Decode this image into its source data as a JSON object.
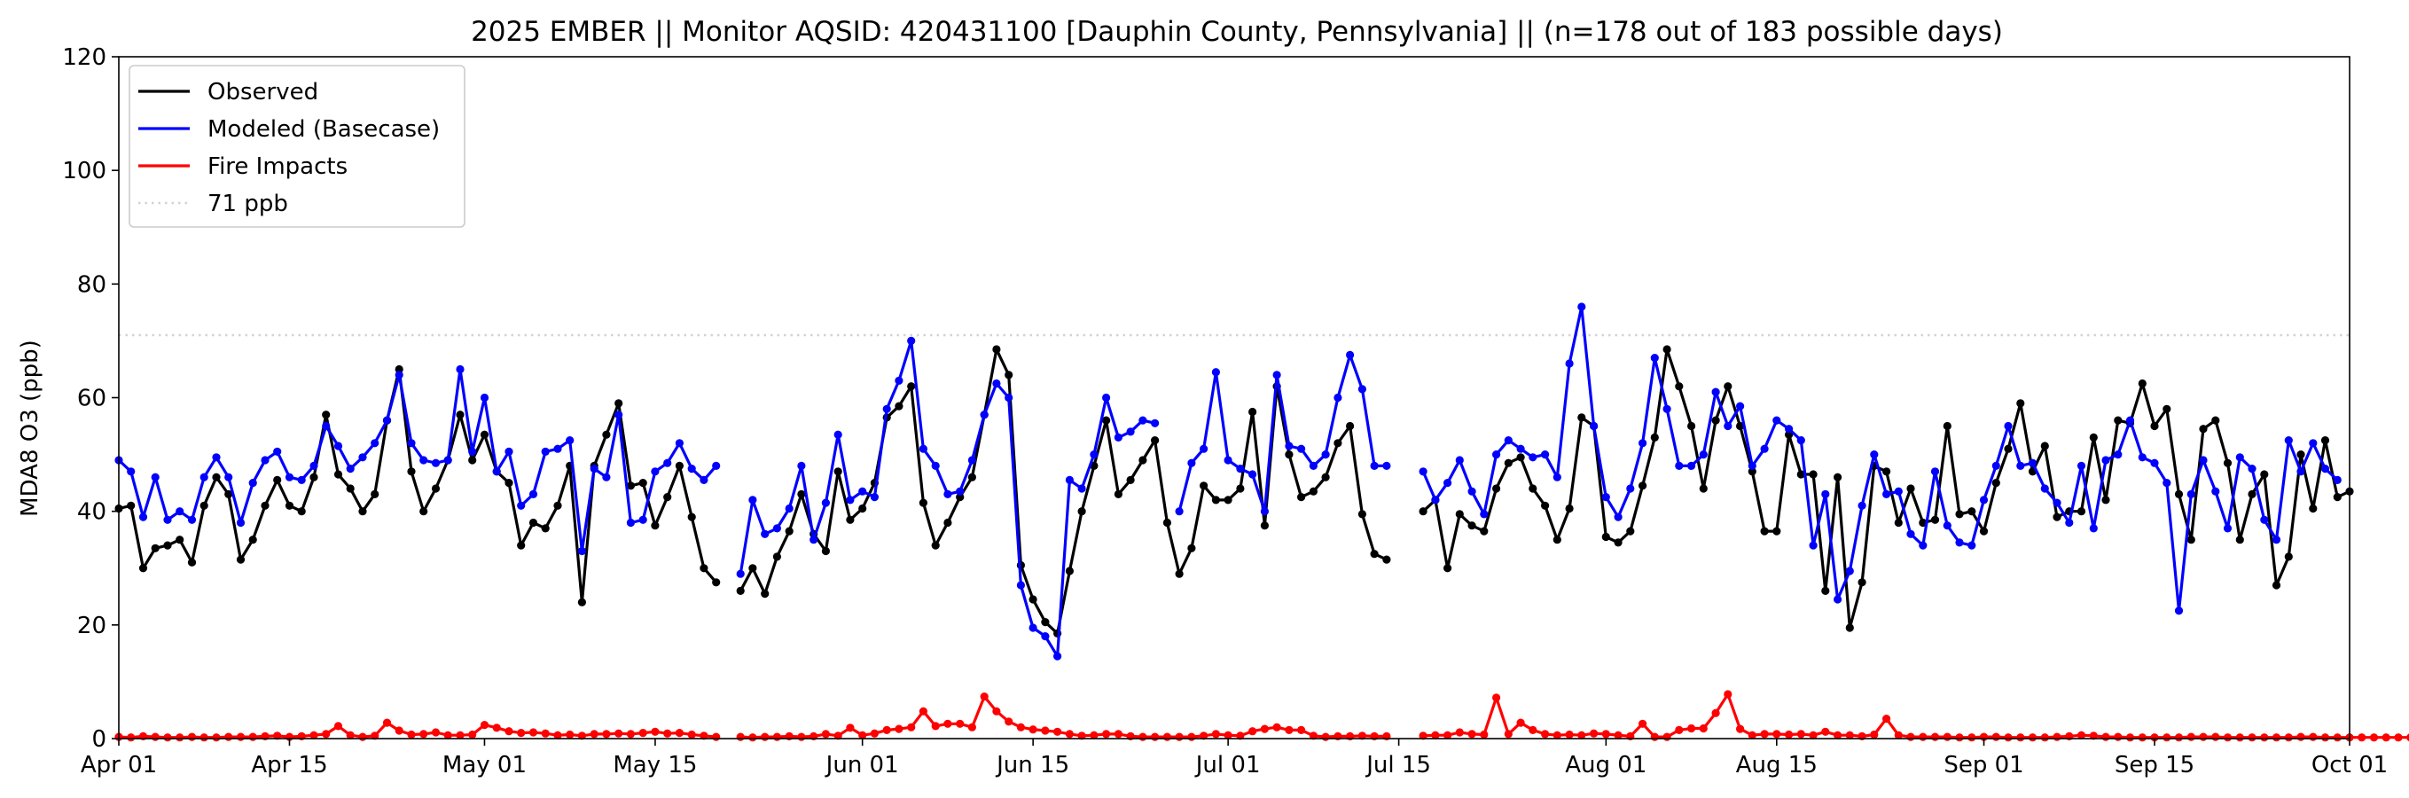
{
  "chart_data": {
    "type": "line",
    "title": "2025 EMBER || Monitor AQSID: 420431100 [Dauphin County, Pennsylvania] || (n=178 out of 183 possible days)",
    "xlabel": "",
    "ylabel": "MDA8 O3 (ppb)",
    "xlim": [
      "2025-04-01",
      "2025-10-01"
    ],
    "ylim": [
      0,
      120
    ],
    "yticks": [
      "0",
      "20",
      "40",
      "60",
      "80",
      "100",
      "120"
    ],
    "xticks": [
      {
        "label": "Apr 01",
        "date": "2025-04-01"
      },
      {
        "label": "Apr 15",
        "date": "2025-04-15"
      },
      {
        "label": "May 01",
        "date": "2025-05-01"
      },
      {
        "label": "May 15",
        "date": "2025-05-15"
      },
      {
        "label": "Jun 01",
        "date": "2025-06-01"
      },
      {
        "label": "Jun 15",
        "date": "2025-06-15"
      },
      {
        "label": "Jul 01",
        "date": "2025-07-01"
      },
      {
        "label": "Jul 15",
        "date": "2025-07-15"
      },
      {
        "label": "Aug 01",
        "date": "2025-08-01"
      },
      {
        "label": "Aug 15",
        "date": "2025-08-15"
      },
      {
        "label": "Sep 01",
        "date": "2025-09-01"
      },
      {
        "label": "Sep 15",
        "date": "2025-09-15"
      },
      {
        "label": "Oct 01",
        "date": "2025-10-01"
      }
    ],
    "grid": false,
    "legend_position": "top-left",
    "threshold": {
      "name": "71 ppb",
      "value": 71,
      "color": "#d3d3d3",
      "style": "dotted"
    },
    "series": [
      {
        "name": "Observed",
        "color": "#000000",
        "start_date": "2025-04-01",
        "values": [
          40.5,
          41,
          30,
          33.5,
          34,
          35,
          31,
          41,
          46,
          43,
          31.5,
          35,
          41,
          45.5,
          41,
          40,
          46,
          57,
          46.5,
          44,
          40,
          43,
          56,
          65,
          47,
          40,
          44,
          49,
          57,
          49,
          53.5,
          47,
          45,
          34,
          38,
          37,
          41,
          48,
          24,
          48,
          53.5,
          59,
          44.5,
          45,
          37.5,
          42.5,
          48,
          39,
          30,
          27.5,
          null,
          26,
          30,
          25.5,
          32,
          36.5,
          43,
          36,
          33,
          47,
          38.5,
          40.5,
          45,
          56.5,
          58.5,
          62,
          41.5,
          34,
          38,
          42.5,
          46,
          57,
          68.5,
          64,
          30.5,
          24.5,
          20.5,
          18.5,
          29.5,
          40,
          48,
          56,
          43,
          45.5,
          49,
          52.5,
          38,
          29,
          33.5,
          44.5,
          42,
          42,
          44,
          57.5,
          37.5,
          62,
          50,
          42.5,
          43.5,
          46,
          52,
          55,
          39.5,
          32.5,
          31.5,
          null,
          null,
          40,
          42,
          30,
          39.5,
          37.5,
          36.5,
          44,
          48.5,
          49.5,
          44,
          41,
          35,
          40.5,
          56.5,
          55,
          35.5,
          34.5,
          36.5,
          44.5,
          53,
          68.5,
          62,
          55,
          44,
          56,
          62,
          55,
          47,
          36.5,
          36.5,
          53.5,
          46.5,
          46.5,
          26,
          46,
          19.5,
          27.5,
          48,
          47,
          38,
          44,
          38,
          38.5,
          55,
          39.5,
          40,
          36.5,
          45,
          51,
          59,
          47,
          51.5,
          39,
          40,
          40,
          53,
          42,
          56,
          55.5,
          62.5,
          55,
          58,
          43,
          35,
          54.5,
          56,
          48.5,
          35,
          43,
          46.5,
          27,
          32,
          50,
          40.5,
          52.5,
          42.5,
          43.5
        ]
      },
      {
        "name": "Modeled (Basecase)",
        "color": "#0000ff",
        "start_date": "2025-04-01",
        "values": [
          49,
          47,
          39,
          46,
          38.5,
          40,
          38.5,
          46,
          49.5,
          46,
          38,
          45,
          49,
          50.5,
          46,
          45.5,
          48,
          55,
          51.5,
          47.5,
          49.5,
          52,
          56,
          64,
          52,
          49,
          48.5,
          49,
          65,
          50.5,
          60,
          47,
          50.5,
          41,
          43,
          50.5,
          51,
          52.5,
          33,
          47.5,
          46,
          57,
          38,
          38.5,
          47,
          48.5,
          52,
          47.5,
          45.5,
          48,
          null,
          29,
          42,
          36,
          37,
          40.5,
          48,
          35,
          41.5,
          53.5,
          42,
          43.5,
          42.5,
          58,
          63,
          70,
          51,
          48,
          43,
          43.5,
          49,
          57,
          62.5,
          60,
          27,
          19.5,
          18,
          14.5,
          45.5,
          44,
          50,
          60,
          53,
          54,
          56,
          55.5,
          null,
          40,
          48.5,
          51,
          64.5,
          49,
          47.5,
          46.5,
          40,
          64,
          51.5,
          51,
          48,
          50,
          60,
          67.5,
          61.5,
          48,
          48,
          null,
          null,
          47,
          42,
          45,
          49,
          43.5,
          39.5,
          50,
          52.5,
          51,
          49.5,
          50,
          46,
          66,
          76,
          55,
          42.5,
          39,
          44,
          52,
          67,
          58,
          48,
          48,
          50,
          61,
          55,
          58.5,
          48,
          51,
          56,
          54.5,
          52.5,
          34,
          43,
          24.5,
          29.5,
          41,
          50,
          43,
          43.5,
          36,
          34,
          47,
          37.5,
          34.5,
          34,
          42,
          48,
          55,
          48,
          48.5,
          44,
          41.5,
          38,
          48,
          37,
          49,
          50,
          56,
          49.5,
          48.5,
          45,
          22.5,
          43,
          49,
          43.5,
          37,
          49.5,
          47.5,
          38.5,
          35,
          52.5,
          47,
          52,
          47.5,
          45.5
        ]
      },
      {
        "name": "Fire Impacts",
        "color": "#ff0000",
        "start_date": "2025-04-01",
        "values": [
          0.3,
          0.2,
          0.4,
          0.3,
          0.2,
          0.2,
          0.3,
          0.2,
          0.2,
          0.3,
          0.3,
          0.3,
          0.4,
          0.5,
          0.3,
          0.4,
          0.6,
          0.8,
          2.2,
          0.6,
          0.3,
          0.5,
          2.8,
          1.4,
          0.7,
          0.8,
          1.1,
          0.6,
          0.6,
          0.7,
          2.4,
          1.9,
          1.3,
          1,
          1.1,
          0.9,
          0.6,
          0.7,
          0.5,
          0.8,
          0.8,
          0.9,
          0.8,
          1,
          1.2,
          0.9,
          1,
          0.7,
          0.5,
          0.3,
          null,
          0.3,
          0.2,
          0.3,
          0.3,
          0.4,
          0.3,
          0.4,
          0.8,
          0.5,
          1.9,
          0.6,
          0.9,
          1.5,
          1.7,
          2,
          4.8,
          2.2,
          2.6,
          2.6,
          2,
          7.4,
          4.8,
          3,
          2,
          1.6,
          1.4,
          1.2,
          0.8,
          0.5,
          0.6,
          0.8,
          0.8,
          0.4,
          0.3,
          0.3,
          0.3,
          0.3,
          0.3,
          0.5,
          0.8,
          0.6,
          0.5,
          1.3,
          1.7,
          2,
          1.5,
          1.5,
          0.5,
          0.3,
          0.4,
          0.4,
          0.5,
          0.4,
          0.4,
          null,
          null,
          0.5,
          0.6,
          0.6,
          1.1,
          0.8,
          0.7,
          7.2,
          0.8,
          2.8,
          1.5,
          0.8,
          0.6,
          0.7,
          0.6,
          0.9,
          0.8,
          0.6,
          0.4,
          2.6,
          0.3,
          0.3,
          1.5,
          1.8,
          1.8,
          4.5,
          7.8,
          1.7,
          0.6,
          0.8,
          0.8,
          0.7,
          0.8,
          0.6,
          1.2,
          0.6,
          0.6,
          0.4,
          0.7,
          3.5,
          0.6,
          0.3,
          0.3,
          0.3,
          0.3,
          0.2,
          0.2,
          0.3,
          0.3,
          0.2,
          0.2,
          0.2,
          0.2,
          0.3,
          0.4,
          0.6,
          0.5,
          0.3,
          0.3,
          0.2,
          0.2,
          0.2,
          0.2,
          0.2,
          0.3,
          0.3,
          0.3,
          0.2,
          0.2,
          0.2,
          0.2,
          0.2,
          0.2,
          0.3,
          0.3,
          0.2,
          0.2,
          0.2,
          0.2,
          0.2,
          0.2,
          0.2,
          0.2
        ]
      }
    ]
  }
}
